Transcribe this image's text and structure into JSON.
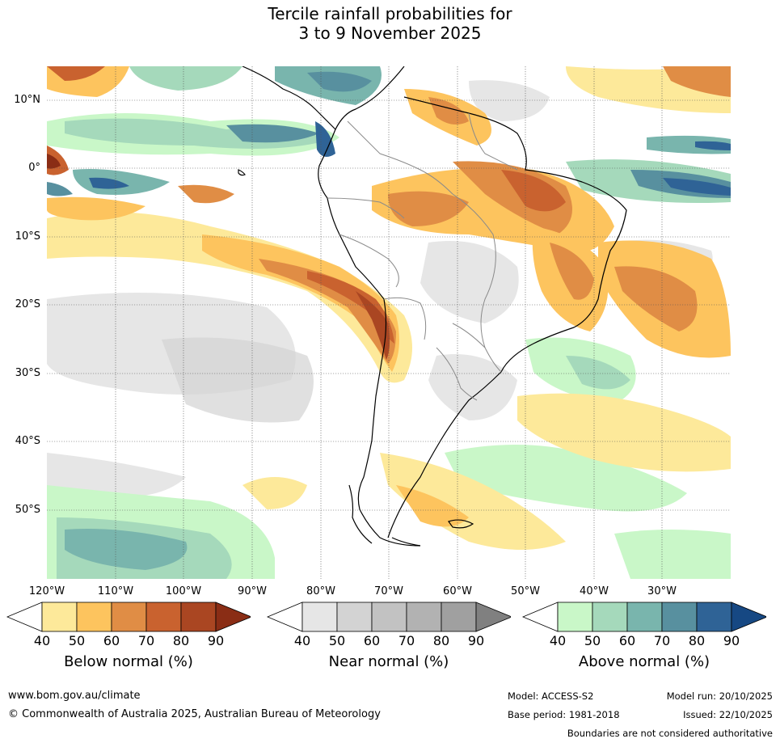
{
  "title": {
    "line1": "Tercile rainfall probabilities for",
    "line2": "3 to 9 November 2025"
  },
  "map": {
    "projection": "equirectangular",
    "region": "South America",
    "latitude_labels": [
      "10°N",
      "0°",
      "10°S",
      "20°S",
      "30°S",
      "40°S",
      "50°S"
    ],
    "longitude_labels": [
      "120°W",
      "110°W",
      "100°W",
      "90°W",
      "80°W",
      "70°W",
      "60°W",
      "50°W",
      "40°W",
      "30°W"
    ]
  },
  "legend": {
    "below_normal": {
      "title": "Below normal (%)",
      "ticks": [
        "40",
        "50",
        "60",
        "70",
        "80",
        "90"
      ],
      "colors": [
        "#fde99a",
        "#fdc45e",
        "#e08d45",
        "#c9622f",
        "#aa4622",
        "#8a2d15"
      ]
    },
    "near_normal": {
      "title": "Near normal (%)",
      "ticks": [
        "40",
        "50",
        "60",
        "70",
        "80",
        "90"
      ],
      "colors": [
        "#e6e6e6",
        "#d3d3d3",
        "#c2c2c2",
        "#b2b2b2",
        "#a0a0a0",
        "#808080"
      ]
    },
    "above_normal": {
      "title": "Above normal (%)",
      "ticks": [
        "40",
        "50",
        "60",
        "70",
        "80",
        "90"
      ],
      "colors": [
        "#c9f7c8",
        "#a5d9bb",
        "#79b5ad",
        "#58909f",
        "#2f6396",
        "#164883"
      ]
    }
  },
  "footer": {
    "website": "www.bom.gov.au/climate",
    "copyright": "© Commonwealth of Australia 2025, Australian Bureau of Meteorology",
    "model": "Model: ACCESS-S2",
    "base_period": "Base period: 1981-2018",
    "model_run": "Model run: 20/10/2025",
    "issued": "Issued: 22/10/2025",
    "disclaimer": "Boundaries are not considered authoritative"
  }
}
